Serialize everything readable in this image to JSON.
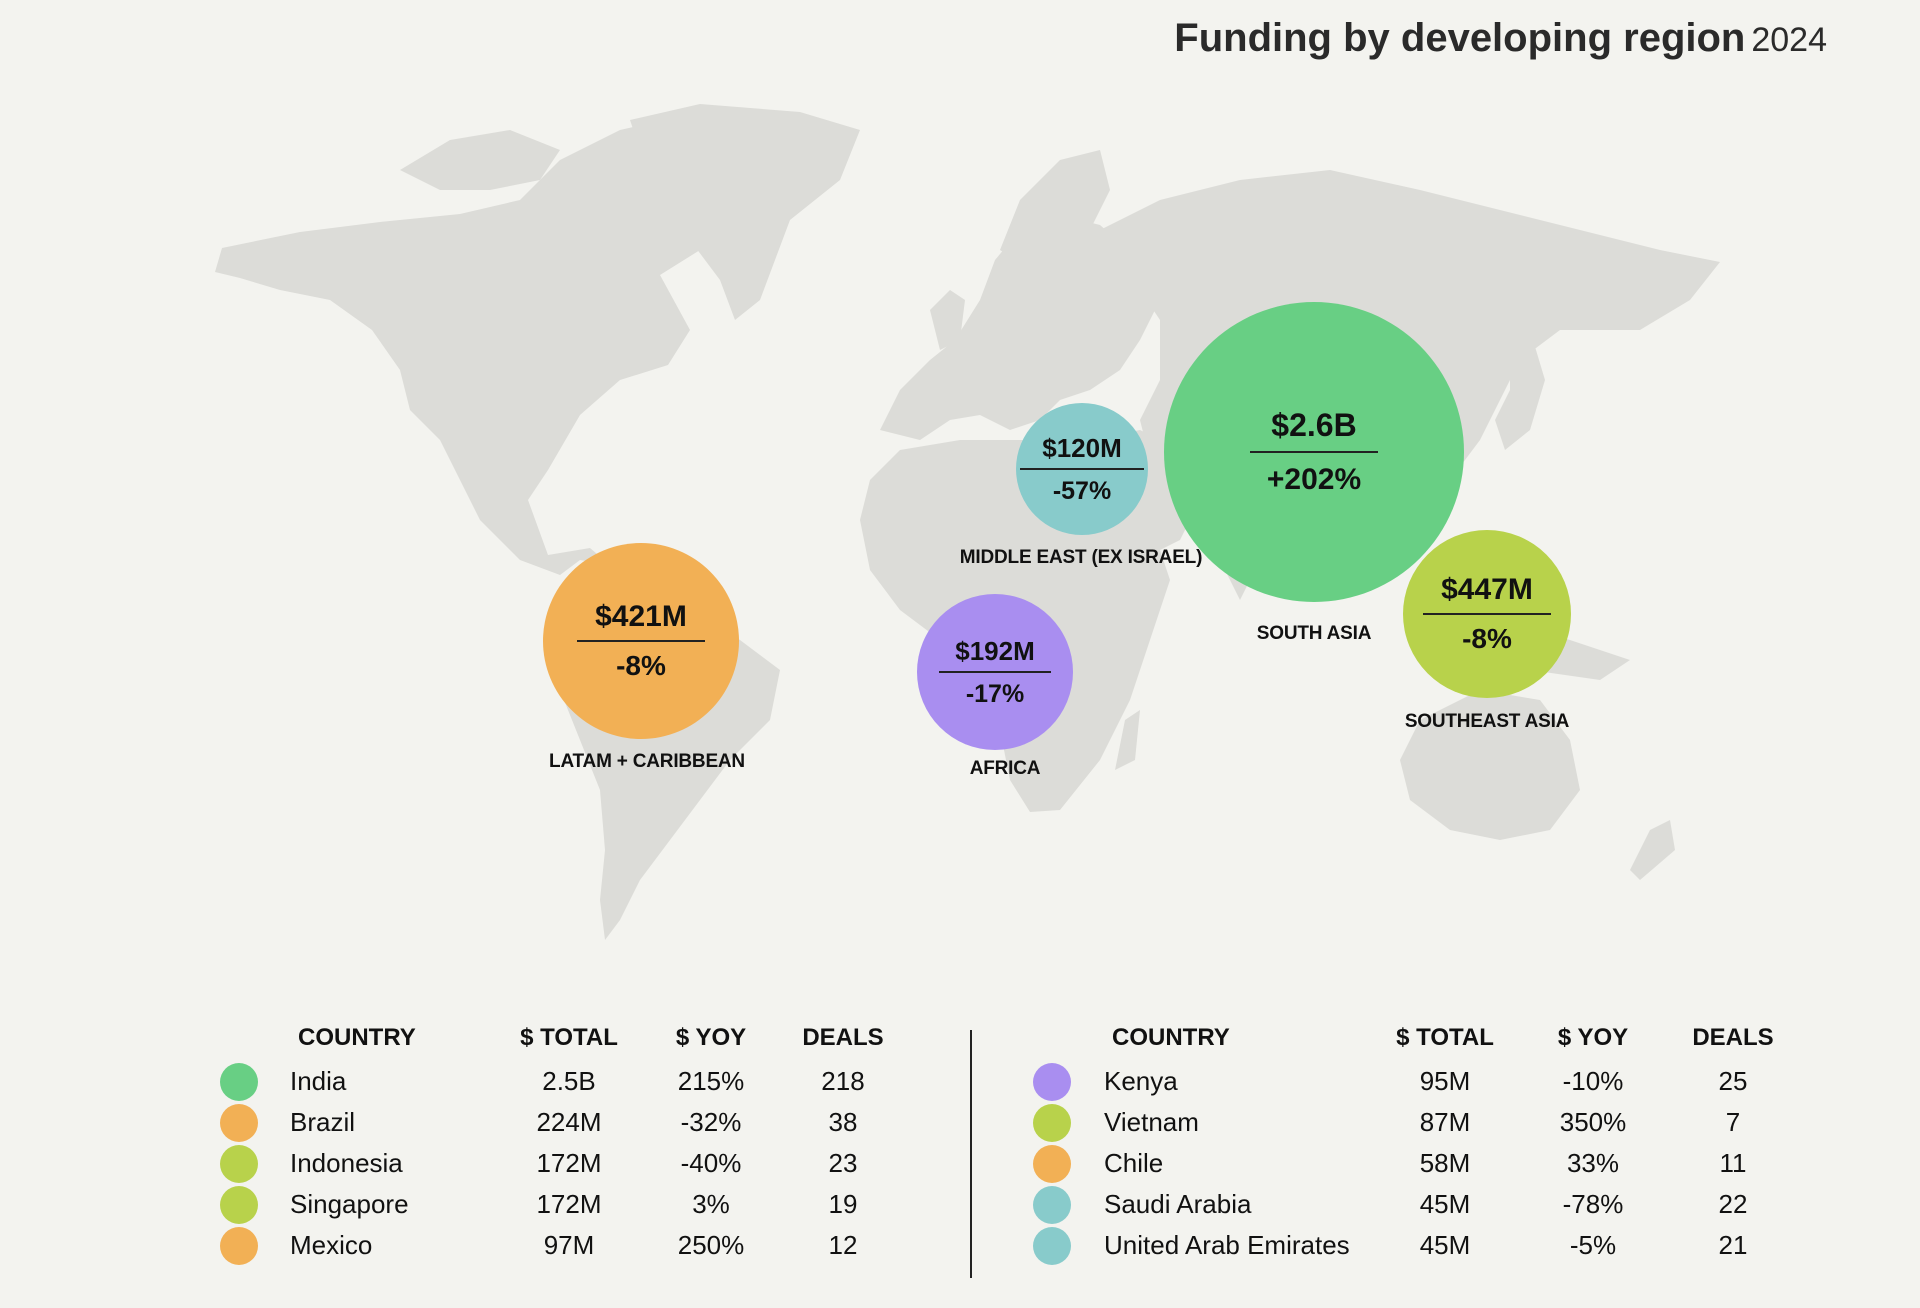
{
  "title": {
    "main": "Funding by developing region",
    "year": "2024"
  },
  "colors": {
    "south_asia": "#68cf84",
    "latam": "#f2b055",
    "southeast_asia": "#b8d24b",
    "middle_east": "#88cbcb",
    "africa": "#a98ef0",
    "land": "#dcdcd8",
    "background": "#f3f3ef"
  },
  "regions": [
    {
      "name": "SOUTH ASIA",
      "amount": "$2.6B",
      "change": "+202%",
      "color": "#68cf84"
    },
    {
      "name": "LATAM + CARIBBEAN",
      "amount": "$421M",
      "change": "-8%",
      "color": "#f2b055"
    },
    {
      "name": "SOUTHEAST ASIA",
      "amount": "$447M",
      "change": "-8%",
      "color": "#b8d24b"
    },
    {
      "name": "AFRICA",
      "amount": "$192M",
      "change": "-17%",
      "color": "#a98ef0"
    },
    {
      "name": "MIDDLE EAST (EX ISRAEL)",
      "amount": "$120M",
      "change": "-57%",
      "color": "#88cbcb"
    }
  ],
  "table_headers": {
    "country": "COUNTRY",
    "total": "$ TOTAL",
    "yoy": "$ YOY",
    "deals": "DEALS"
  },
  "table_left": [
    {
      "country": "India",
      "total": "2.5B",
      "yoy": "215%",
      "deals": "218",
      "color": "#68cf84"
    },
    {
      "country": "Brazil",
      "total": "224M",
      "yoy": "-32%",
      "deals": "38",
      "color": "#f2b055"
    },
    {
      "country": "Indonesia",
      "total": "172M",
      "yoy": "-40%",
      "deals": "23",
      "color": "#b8d24b"
    },
    {
      "country": "Singapore",
      "total": "172M",
      "yoy": "3%",
      "deals": "19",
      "color": "#b8d24b"
    },
    {
      "country": "Mexico",
      "total": "97M",
      "yoy": "250%",
      "deals": "12",
      "color": "#f2b055"
    }
  ],
  "table_right": [
    {
      "country": "Kenya",
      "total": "95M",
      "yoy": "-10%",
      "deals": "25",
      "color": "#a98ef0"
    },
    {
      "country": "Vietnam",
      "total": "87M",
      "yoy": "350%",
      "deals": "7",
      "color": "#b8d24b"
    },
    {
      "country": "Chile",
      "total": "58M",
      "yoy": "33%",
      "deals": "11",
      "color": "#f2b055"
    },
    {
      "country": "Saudi Arabia",
      "total": "45M",
      "yoy": "-78%",
      "deals": "22",
      "color": "#88cbcb"
    },
    {
      "country": "United Arab Emirates",
      "total": "45M",
      "yoy": "-5%",
      "deals": "21",
      "color": "#88cbcb"
    }
  ]
}
